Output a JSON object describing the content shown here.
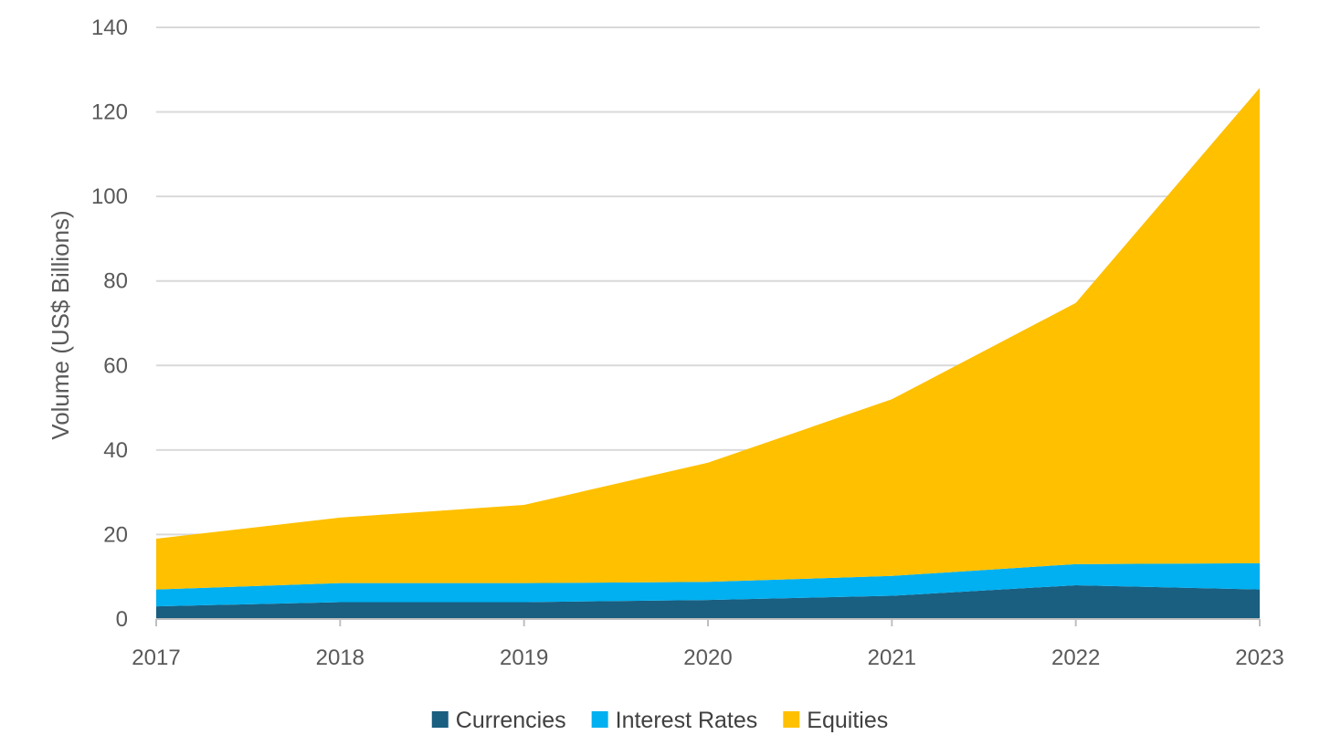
{
  "chart_data": {
    "type": "area",
    "stacked": true,
    "title": "",
    "xlabel": "",
    "ylabel": "Volume (US$ Billions)",
    "x": [
      "2017",
      "2018",
      "2019",
      "2020",
      "2021",
      "2022",
      "2023"
    ],
    "ylim": [
      0,
      140
    ],
    "yticks": [
      "0",
      "20",
      "40",
      "60",
      "80",
      "100",
      "120",
      "140"
    ],
    "grid": true,
    "legend_position": "bottom",
    "series": [
      {
        "name": "Currencies",
        "color": "#1a5e80",
        "values": [
          3,
          4,
          4,
          4.5,
          5.5,
          8,
          7
        ]
      },
      {
        "name": "Interest Rates",
        "color": "#00b0f0",
        "values": [
          4,
          4.5,
          4.5,
          4.3,
          4.7,
          5,
          6.2
        ]
      },
      {
        "name": "Equities",
        "color": "#ffc000",
        "values": [
          12,
          15.5,
          18.5,
          28.2,
          41.8,
          61.8,
          112.5
        ]
      }
    ]
  }
}
